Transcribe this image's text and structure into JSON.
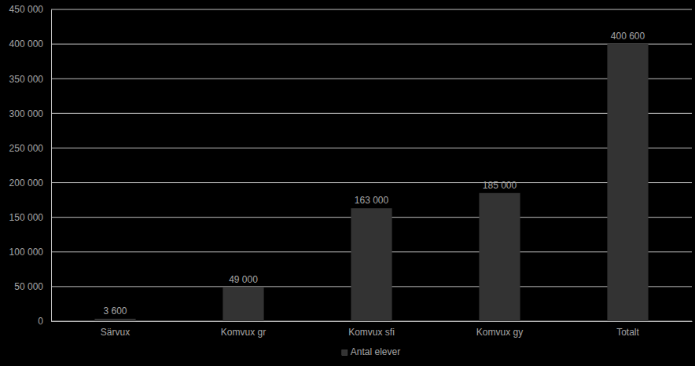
{
  "chart_data": {
    "type": "bar",
    "categories": [
      "Särvux",
      "Komvux gr",
      "Komvux sfi",
      "Komvux gy",
      "Totalt"
    ],
    "series": [
      {
        "name": "Antal elever",
        "color": "#333333",
        "values": [
          3600,
          49000,
          163000,
          185000,
          400600
        ],
        "value_labels": [
          "3 600",
          "49 000",
          "163 000",
          "185 000",
          "400 600"
        ]
      }
    ],
    "ylim": [
      0,
      450000
    ],
    "yticks": [
      0,
      {
        "value": 50000,
        "label": "50 000"
      },
      {
        "value": 100000,
        "label": "100 000"
      },
      {
        "value": 150000,
        "label": "150 000"
      },
      {
        "value": 200000,
        "label": "200 000"
      },
      {
        "value": 250000,
        "label": "250 000"
      },
      {
        "value": 300000,
        "label": "300 000"
      },
      {
        "value": 350000,
        "label": "350 000"
      },
      {
        "value": 400000,
        "label": "400 000"
      },
      {
        "value": 450000,
        "label": "450 000"
      }
    ],
    "grid": true,
    "legend": "bottom",
    "data_labels": true
  }
}
